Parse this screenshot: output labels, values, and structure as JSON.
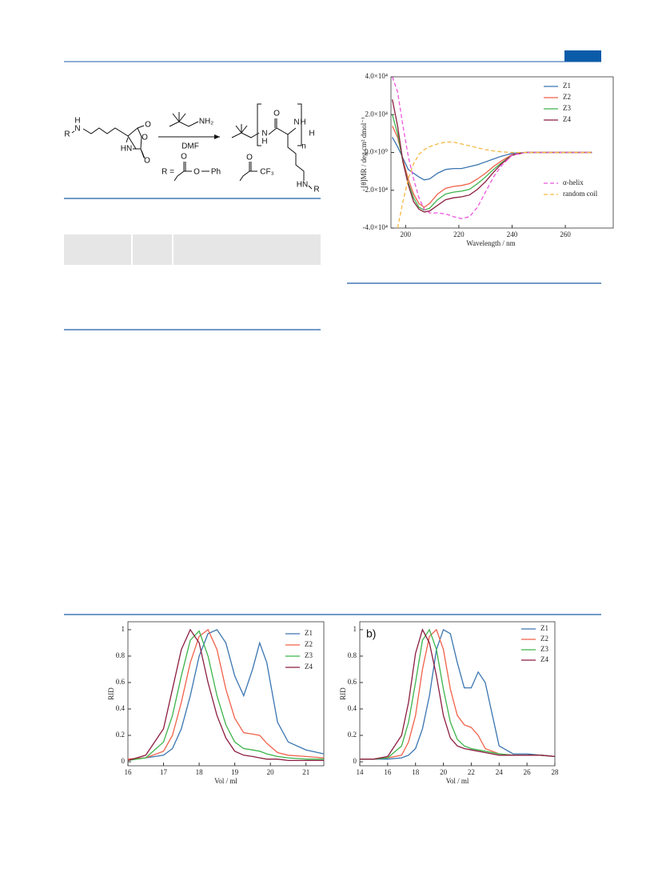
{
  "scheme": {
    "labels": [
      "R",
      "H",
      "N",
      "O",
      "O",
      "HN",
      "O",
      "NH₂",
      "DMF",
      "N",
      "H",
      "O",
      "N",
      "H",
      "H",
      "n",
      "HN",
      "R",
      "R =",
      "O",
      "O",
      "Ph",
      "O",
      "CF₃"
    ]
  },
  "chart_data": [
    {
      "type": "line",
      "xlabel": "Wavelength / nm",
      "ylabel": "[θ]MR / deg cm² dmol⁻¹",
      "legend": "upper right",
      "x": [
        195,
        197,
        199,
        201,
        203,
        205,
        207,
        209,
        212,
        215,
        218,
        221,
        224,
        227,
        230,
        233,
        236,
        240,
        245,
        250,
        260,
        270
      ],
      "series": [
        {
          "name": "Z1",
          "color": "#3a75b0",
          "values": [
            8000,
            3000,
            -3000,
            -9000,
            -11000,
            -13000,
            -14500,
            -14000,
            -11000,
            -9000,
            -8500,
            -8500,
            -7500,
            -6500,
            -5000,
            -3500,
            -2000,
            -500,
            0,
            0,
            0,
            0
          ]
        },
        {
          "name": "Z2",
          "color": "#f0624a",
          "values": [
            14000,
            8000,
            -4000,
            -14000,
            -22000,
            -27000,
            -29000,
            -27000,
            -22000,
            -19000,
            -18000,
            -17500,
            -16500,
            -14000,
            -11000,
            -7500,
            -4500,
            -1200,
            0,
            0,
            0,
            0
          ]
        },
        {
          "name": "Z3",
          "color": "#3cb44b",
          "values": [
            20000,
            10000,
            -5000,
            -16000,
            -24000,
            -29000,
            -30500,
            -29500,
            -25000,
            -22000,
            -21000,
            -20500,
            -19500,
            -16500,
            -13000,
            -9000,
            -5500,
            -1500,
            0,
            0,
            0,
            0
          ]
        },
        {
          "name": "Z4",
          "color": "#8b1e3f",
          "values": [
            28000,
            14000,
            -5000,
            -17000,
            -26000,
            -30000,
            -31500,
            -31000,
            -28000,
            -25000,
            -24000,
            -23500,
            -22500,
            -19500,
            -15500,
            -10500,
            -6000,
            -1500,
            0,
            0,
            0,
            0
          ]
        },
        {
          "name": "α-helix",
          "color": "#ee55dd",
          "dash": true,
          "values": [
            40000,
            32000,
            14000,
            -2000,
            -14000,
            -24000,
            -30000,
            -32000,
            -32000,
            -32500,
            -34000,
            -35000,
            -34000,
            -29000,
            -21000,
            -13000,
            -7000,
            -1500,
            0,
            0,
            0,
            0
          ]
        },
        {
          "name": "random coil",
          "color": "#f5b942",
          "dash": true,
          "values": [
            null,
            -40000,
            -26000,
            -14000,
            -6000,
            -1000,
            1500,
            3000,
            4500,
            5500,
            5500,
            4500,
            3500,
            2500,
            1500,
            800,
            300,
            0,
            0,
            0,
            0,
            0
          ]
        }
      ],
      "xlim": [
        194.5,
        278
      ],
      "xticks": [
        200,
        220,
        240,
        260
      ],
      "ylim": [
        -40000,
        40000
      ],
      "yticks": [
        {
          "value": -40000,
          "label": "-4.0×10⁴"
        },
        {
          "value": -20000,
          "label": "-2.0×10⁴"
        },
        {
          "value": 0,
          "label": "0.0×10⁰"
        },
        {
          "value": 20000,
          "label": "2.0×10⁴"
        },
        {
          "value": 40000,
          "label": "4.0×10⁴"
        }
      ]
    },
    {
      "type": "line",
      "xlabel": "Vol / ml",
      "ylabel": "RID",
      "legend": "upper right",
      "x": [
        16,
        16.5,
        17,
        17.25,
        17.5,
        17.75,
        18,
        18.25,
        18.5,
        18.75,
        19,
        19.25,
        19.5,
        19.7,
        19.9,
        20.2,
        20.5,
        21,
        21.5
      ],
      "series": [
        {
          "name": "Z1",
          "color": "#3a75b0",
          "values": [
            0.02,
            0.03,
            0.05,
            0.1,
            0.25,
            0.5,
            0.8,
            0.97,
            1.0,
            0.9,
            0.65,
            0.5,
            0.7,
            0.9,
            0.75,
            0.3,
            0.15,
            0.09,
            0.06
          ]
        },
        {
          "name": "Z2",
          "color": "#f0624a",
          "values": [
            0.02,
            0.03,
            0.08,
            0.2,
            0.45,
            0.75,
            0.95,
            1.0,
            0.85,
            0.55,
            0.33,
            0.22,
            0.21,
            0.2,
            0.14,
            0.07,
            0.05,
            0.04,
            0.03
          ]
        },
        {
          "name": "Z3",
          "color": "#3cb44b",
          "values": [
            0.01,
            0.03,
            0.15,
            0.35,
            0.65,
            0.92,
            0.99,
            0.8,
            0.5,
            0.28,
            0.15,
            0.1,
            0.09,
            0.08,
            0.06,
            0.04,
            0.03,
            0.02,
            0.02
          ]
        },
        {
          "name": "Z4",
          "color": "#8b1e3f",
          "values": [
            0.01,
            0.05,
            0.25,
            0.55,
            0.85,
            1.0,
            0.9,
            0.6,
            0.35,
            0.18,
            0.08,
            0.05,
            0.04,
            0.03,
            0.02,
            0.02,
            0.01,
            0.01,
            0.01
          ]
        }
      ],
      "xlim": [
        16,
        21.5
      ],
      "xticks": [
        16,
        17,
        18,
        19,
        20,
        21
      ],
      "ylim": [
        -0.03,
        1.06
      ],
      "yticks": [
        0,
        0.2,
        0.4,
        0.6,
        0.8,
        1
      ]
    },
    {
      "type": "line",
      "panel_label": "b)",
      "xlabel": "Vol / ml",
      "ylabel": "RID",
      "legend": "upper right",
      "x": [
        14,
        15,
        16,
        17,
        17.5,
        18,
        18.5,
        19,
        19.5,
        20,
        20.5,
        21,
        21.5,
        22,
        22.5,
        23,
        24,
        25,
        26,
        27,
        28
      ],
      "series": [
        {
          "name": "Z1",
          "color": "#3a75b0",
          "values": [
            0.02,
            0.02,
            0.02,
            0.03,
            0.05,
            0.1,
            0.25,
            0.5,
            0.85,
            1.0,
            0.97,
            0.75,
            0.56,
            0.56,
            0.68,
            0.6,
            0.12,
            0.06,
            0.06,
            0.05,
            0.04
          ]
        },
        {
          "name": "Z2",
          "color": "#f0624a",
          "values": [
            0.02,
            0.02,
            0.03,
            0.05,
            0.15,
            0.35,
            0.7,
            0.95,
            1.0,
            0.85,
            0.55,
            0.35,
            0.28,
            0.26,
            0.2,
            0.1,
            0.06,
            0.05,
            0.05,
            0.05,
            0.04
          ]
        },
        {
          "name": "Z3",
          "color": "#3cb44b",
          "values": [
            0.02,
            0.02,
            0.03,
            0.12,
            0.3,
            0.6,
            0.92,
            1.0,
            0.85,
            0.55,
            0.3,
            0.17,
            0.12,
            0.1,
            0.09,
            0.08,
            0.06,
            0.05,
            0.05,
            0.05,
            0.04
          ]
        },
        {
          "name": "Z4",
          "color": "#8b1e3f",
          "values": [
            0.02,
            0.02,
            0.04,
            0.2,
            0.45,
            0.82,
            1.0,
            0.9,
            0.65,
            0.35,
            0.18,
            0.12,
            0.1,
            0.09,
            0.08,
            0.07,
            0.05,
            0.05,
            0.05,
            0.05,
            0.04
          ]
        }
      ],
      "xlim": [
        14,
        28
      ],
      "xticks": [
        14,
        16,
        18,
        20,
        22,
        24,
        26,
        28
      ],
      "ylim": [
        -0.03,
        1.06
      ],
      "yticks": [
        0,
        0.2,
        0.4,
        0.6,
        0.8,
        1
      ]
    }
  ]
}
